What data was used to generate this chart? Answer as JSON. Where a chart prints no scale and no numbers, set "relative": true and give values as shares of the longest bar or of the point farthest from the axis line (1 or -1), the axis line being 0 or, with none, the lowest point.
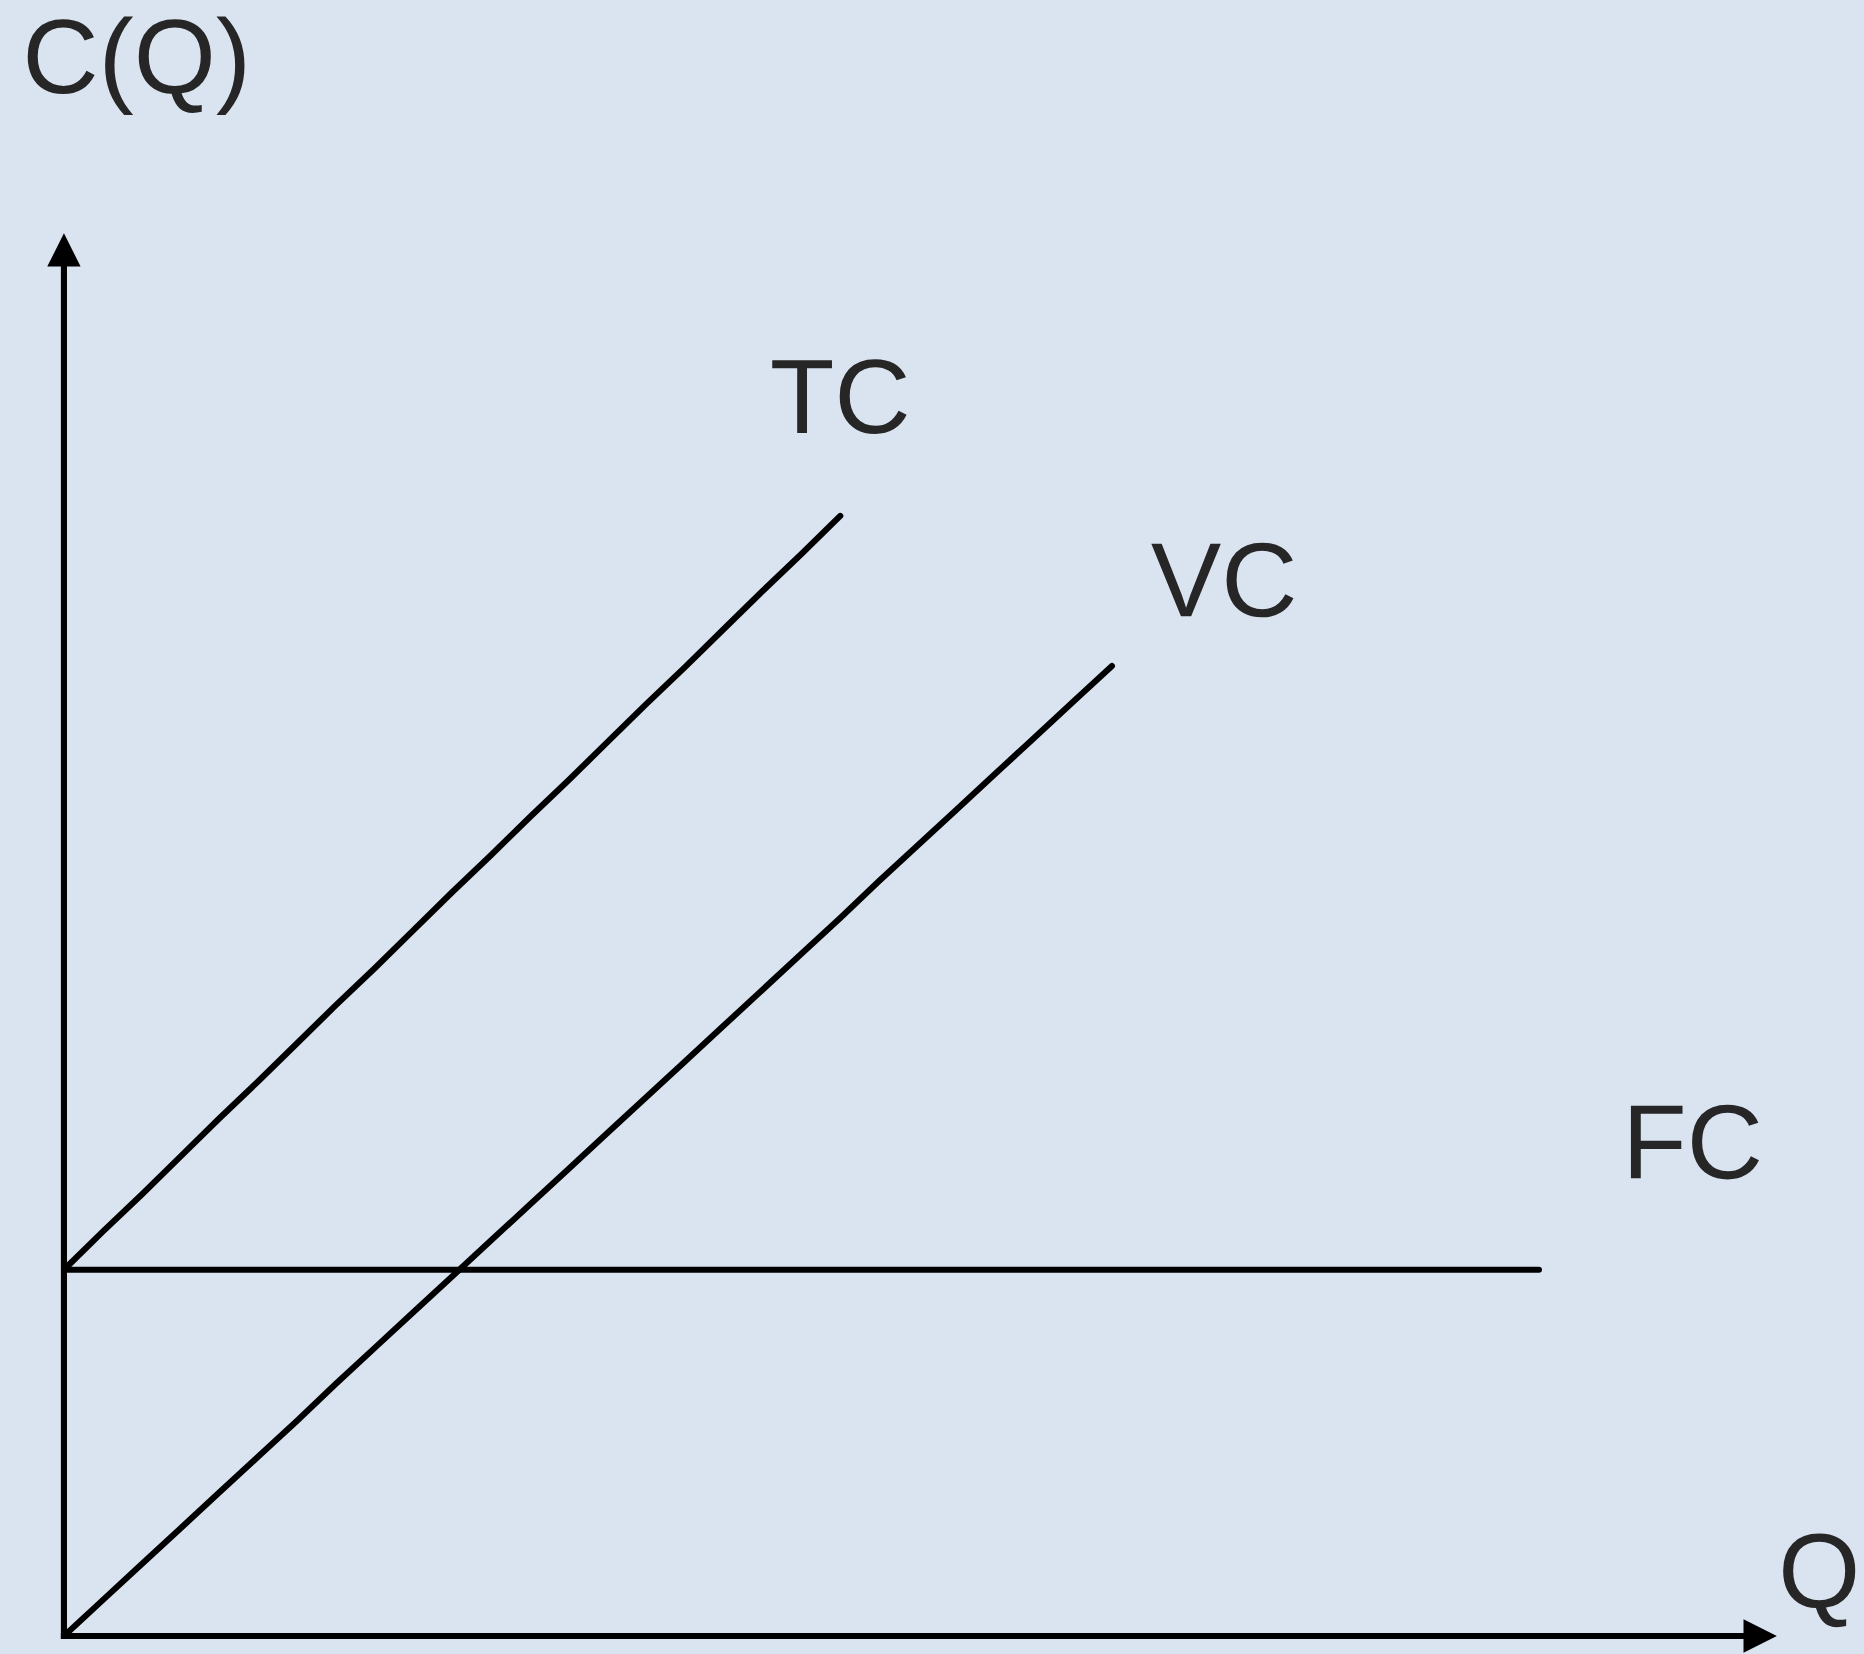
{
  "chart_data": {
    "type": "line",
    "relative": true,
    "xlabel": "Q",
    "ylabel": "C(Q)",
    "legend": false,
    "marker": "none",
    "line_style": "solid",
    "categories": [
      null,
      null,
      null,
      null,
      null,
      null,
      null,
      null,
      null,
      null,
      null,
      null,
      null,
      null,
      null,
      null,
      null,
      null,
      null,
      null,
      null,
      null,
      null,
      null,
      null,
      null,
      null,
      null,
      null,
      null,
      null,
      null,
      null,
      null,
      null,
      null,
      null,
      null,
      null
    ],
    "series": [
      {
        "name": "TC",
        "color": "#000000",
        "values": [
          0.327,
          0.361,
          0.394,
          0.428,
          0.462,
          0.495,
          0.529,
          0.563,
          0.596,
          0.63,
          0.664,
          0.697,
          0.731,
          0.764,
          0.798,
          0.832,
          0.865,
          0.899,
          0.933,
          0.966,
          1,
          null,
          null,
          null,
          null,
          null,
          null,
          null,
          null,
          null,
          null,
          null,
          null,
          null,
          null,
          null,
          null,
          null,
          null
        ]
      },
      {
        "name": "VC",
        "color": "#000000",
        "values": [
          0,
          0.032,
          0.064,
          0.096,
          0.128,
          0.16,
          0.192,
          0.225,
          0.257,
          0.289,
          0.321,
          0.353,
          0.385,
          0.417,
          0.449,
          0.481,
          0.513,
          0.545,
          0.577,
          0.609,
          0.641,
          0.674,
          0.706,
          0.738,
          0.77,
          0.802,
          0.834,
          0.866,
          null,
          null,
          null,
          null,
          null,
          null,
          null,
          null,
          null,
          null,
          null
        ]
      },
      {
        "name": "FC",
        "color": "#000000",
        "values": [
          0.327,
          0.327,
          0.327,
          0.327,
          0.327,
          0.327,
          0.327,
          0.327,
          0.327,
          0.327,
          0.327,
          0.327,
          0.327,
          0.327,
          0.327,
          0.327,
          0.327,
          0.327,
          0.327,
          0.327,
          0.327,
          0.327,
          0.327,
          0.327,
          0.327,
          0.327,
          0.327,
          0.327,
          0.327,
          0.327,
          0.327,
          0.327,
          0.327,
          0.327,
          0.327,
          0.327,
          0.327,
          0.327,
          0.327
        ]
      }
    ]
  }
}
